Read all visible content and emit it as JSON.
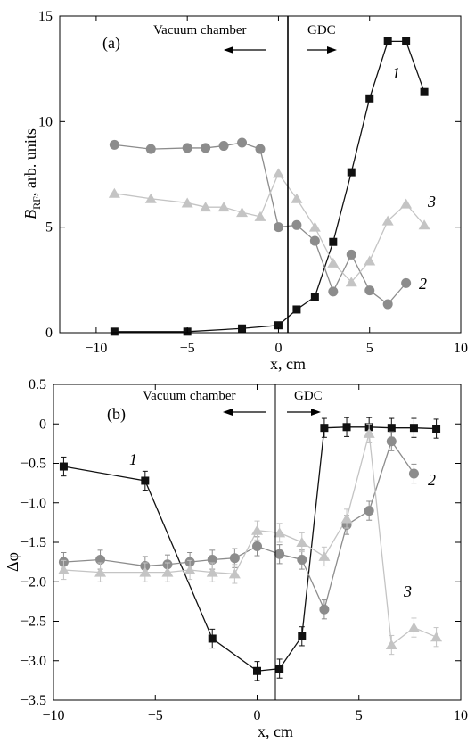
{
  "chart_data": [
    {
      "type": "line",
      "panel_label": "(a)",
      "xlabel": "x, cm",
      "ylabel_main": "B",
      "ylabel_sub": "RF",
      "ylabel_rest": ", arb. units",
      "xlim": [
        -12,
        10
      ],
      "ylim": [
        0,
        15
      ],
      "xticks": [
        -10,
        -5,
        0,
        5,
        10
      ],
      "yticks": [
        0,
        5,
        10,
        15
      ],
      "annotations": {
        "left": "Vacuum  chamber",
        "right": "GDC"
      },
      "series": [
        {
          "name": "1",
          "marker": "square",
          "color": "#111111",
          "x": [
            -9,
            -5,
            -2,
            0,
            1,
            2,
            3,
            4,
            5,
            6,
            7,
            8
          ],
          "y": [
            0.05,
            0.05,
            0.2,
            0.35,
            1.1,
            1.7,
            4.3,
            7.6,
            11.1,
            13.8,
            13.8,
            11.4
          ]
        },
        {
          "name": "2",
          "marker": "circle",
          "color": "#8c8c8c",
          "x": [
            -9,
            -7,
            -5,
            -4,
            -3,
            -2,
            -1,
            0,
            1,
            2,
            3,
            4,
            5,
            6,
            7
          ],
          "y": [
            8.9,
            8.7,
            8.75,
            8.75,
            8.85,
            9.0,
            8.7,
            5.0,
            5.1,
            4.35,
            1.95,
            3.7,
            2.0,
            1.35,
            2.35
          ]
        },
        {
          "name": "3",
          "marker": "triangle",
          "color": "#c4c4c4",
          "x": [
            -9,
            -7,
            -5,
            -4,
            -3,
            -2,
            -1,
            0,
            1,
            2,
            3,
            4,
            5,
            6,
            7,
            8
          ],
          "y": [
            6.6,
            6.35,
            6.15,
            5.95,
            5.95,
            5.7,
            5.5,
            7.55,
            6.35,
            5.0,
            3.3,
            2.4,
            3.4,
            5.3,
            6.1,
            5.1
          ]
        }
      ]
    },
    {
      "type": "line",
      "panel_label": "(b)",
      "xlabel": "x, cm",
      "ylabel": "Δφ",
      "xlim": [
        -10,
        10
      ],
      "ylim": [
        -3.5,
        0.5
      ],
      "xticks": [
        -10,
        -5,
        0,
        5,
        10
      ],
      "yticks": [
        0.5,
        0,
        -0.5,
        -1.0,
        -1.5,
        -2.0,
        -2.5,
        -3.0,
        -3.5
      ],
      "ytick_labels": [
        "0.5",
        "0",
        "−0.5",
        "−1.0",
        "−1.5",
        "−2.0",
        "−2.5",
        "−3.0",
        "−3.5"
      ],
      "annotations": {
        "left": "Vacuum chamber",
        "right": "GDC"
      },
      "series": [
        {
          "name": "1",
          "marker": "square",
          "color": "#111111",
          "x": [
            -9.5,
            -5.5,
            -2.2,
            0,
            1.1,
            2.2,
            3.3,
            4.4,
            5.5,
            6.6,
            7.7,
            8.8
          ],
          "y": [
            -0.54,
            -0.72,
            -2.72,
            -3.13,
            -3.1,
            -2.69,
            -0.05,
            -0.04,
            -0.04,
            -0.05,
            -0.05,
            -0.06
          ],
          "err": 0.12
        },
        {
          "name": "2",
          "marker": "circle",
          "color": "#8c8c8c",
          "x": [
            -9.5,
            -7.7,
            -5.5,
            -4.4,
            -3.3,
            -2.2,
            -1.1,
            0,
            1.1,
            2.2,
            3.3,
            4.4,
            5.5,
            6.6,
            7.7
          ],
          "y": [
            -1.75,
            -1.72,
            -1.8,
            -1.78,
            -1.75,
            -1.72,
            -1.7,
            -1.55,
            -1.65,
            -1.72,
            -2.35,
            -1.28,
            -1.1,
            -0.22,
            -0.63
          ],
          "err": 0.12
        },
        {
          "name": "3",
          "marker": "triangle",
          "color": "#c4c4c4",
          "x": [
            -9.5,
            -7.7,
            -5.5,
            -4.4,
            -3.3,
            -2.2,
            -1.1,
            0,
            1.1,
            2.2,
            3.3,
            4.4,
            5.5,
            6.6,
            7.7,
            8.8
          ],
          "y": [
            -1.85,
            -1.88,
            -1.88,
            -1.88,
            -1.85,
            -1.88,
            -1.9,
            -1.35,
            -1.38,
            -1.5,
            -1.68,
            -1.2,
            -0.12,
            -2.8,
            -2.58,
            -2.7
          ],
          "err": 0.12
        }
      ]
    }
  ]
}
